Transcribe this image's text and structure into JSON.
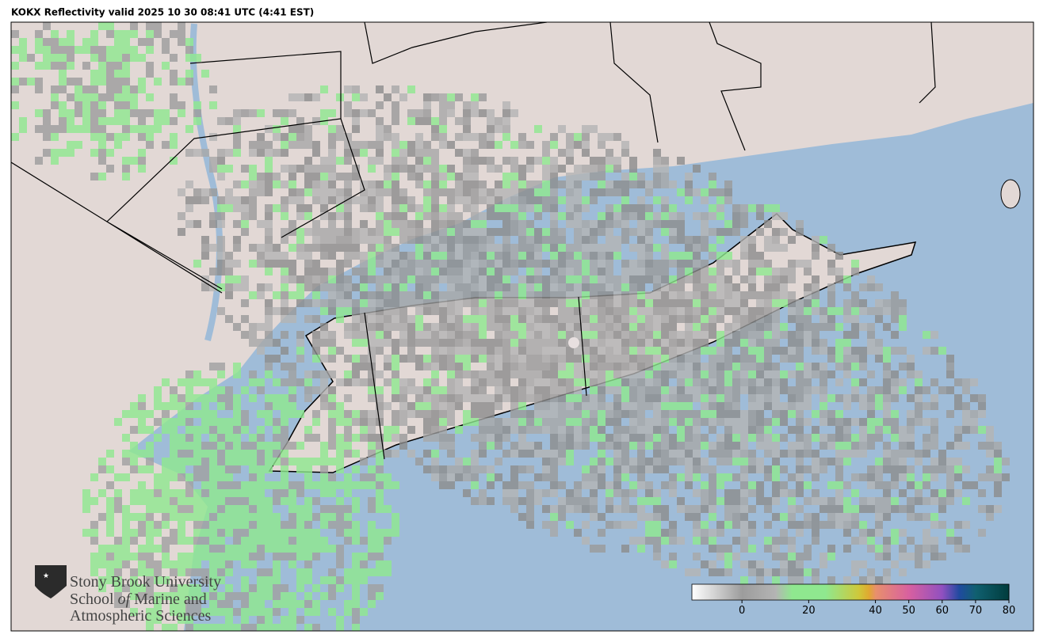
{
  "title": "KOKX Reflectivity valid 2025 10 30 08:41 UTC (4:41 EST)",
  "logo": {
    "line1": "Stony Brook University",
    "line2a": "School ",
    "line2b": "of",
    "line2c": " Marine and",
    "line3": "Atmospheric Sciences"
  },
  "colorbar": {
    "lim": [
      -15,
      80
    ],
    "ticks": [
      0,
      20,
      40,
      50,
      60,
      70,
      80
    ],
    "stops": [
      {
        "value": -15,
        "color": "#ffffff"
      },
      {
        "value": 0,
        "color": "#9c9c9c"
      },
      {
        "value": 10,
        "color": "#b4b4b4"
      },
      {
        "value": 15,
        "color": "#8fe88f"
      },
      {
        "value": 25,
        "color": "#8fe88f"
      },
      {
        "value": 35,
        "color": "#cfc83a"
      },
      {
        "value": 38,
        "color": "#e0a830"
      },
      {
        "value": 40,
        "color": "#e8906c"
      },
      {
        "value": 50,
        "color": "#d860a0"
      },
      {
        "value": 60,
        "color": "#9050c0"
      },
      {
        "value": 65,
        "color": "#204aa0"
      },
      {
        "value": 70,
        "color": "#106070"
      },
      {
        "value": 80,
        "color": "#003c3c"
      }
    ]
  }
}
